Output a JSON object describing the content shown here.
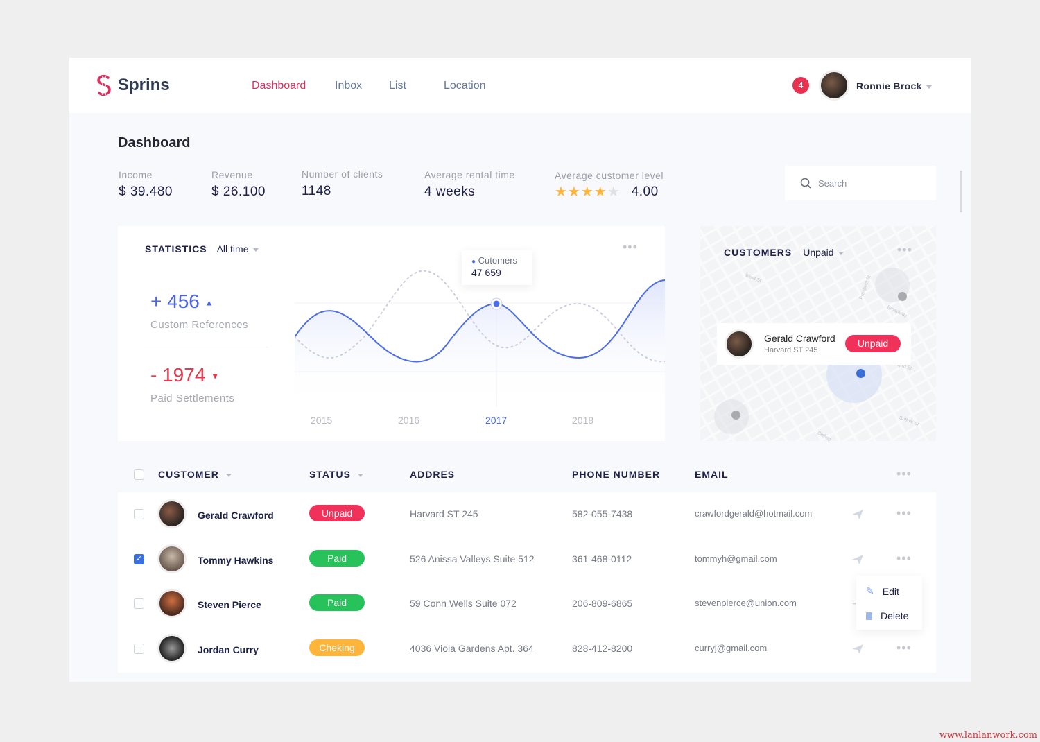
{
  "brand": {
    "name": "Sprins",
    "color": "#e52d5d"
  },
  "nav": [
    {
      "label": "Dashboard",
      "active": true
    },
    {
      "label": "Inbox"
    },
    {
      "label": "List"
    },
    {
      "label": "Location"
    }
  ],
  "user": {
    "notifications": "4",
    "name": "Ronnie Brock"
  },
  "page_title": "Dashboard",
  "kpis": [
    {
      "label": "Income",
      "value": "$ 39.480"
    },
    {
      "label": "Revenue",
      "value": "$ 26.100"
    },
    {
      "label": "Number of clients",
      "value": "1148"
    },
    {
      "label": "Average rental time",
      "value": "4 weeks"
    },
    {
      "label": "Average customer level",
      "value": "4.00",
      "stars": 4
    }
  ],
  "search": {
    "placeholder": "Search"
  },
  "statistics": {
    "title": "STATISTICS",
    "filter": "All time",
    "up_value": "+ 456",
    "up_label": "Custom References",
    "down_value": "- 1974",
    "down_label": "Paid Settlements",
    "tooltip_label": "Cutomers",
    "tooltip_value": "47 659",
    "years": [
      "2015",
      "2016",
      "2017",
      "2018"
    ],
    "active_year": "2017"
  },
  "customers_map": {
    "title": "CUSTOMERS",
    "filter": "Unpaid",
    "popup": {
      "name": "Gerald Crawford",
      "address": "Harvard ST 245",
      "status": "Unpaid"
    },
    "streets": [
      "West St",
      "Prospect St",
      "Broadway",
      "Harvard St",
      "Suffolk St",
      "Bishop"
    ]
  },
  "table": {
    "headers": [
      "CUSTOMER",
      "STATUS",
      "ADDRES",
      "PHONE NUMBER",
      "EMAIL"
    ],
    "rows": [
      {
        "name": "Gerald Crawford",
        "status": "Unpaid",
        "address": "Harvard ST 245",
        "phone": "582-055-7438",
        "email": "crawfordgerald@hotmail.com",
        "checked": false
      },
      {
        "name": "Tommy Hawkins",
        "status": "Paid",
        "address": "526 Anissa Valleys Suite 512",
        "phone": "361-468-0112",
        "email": "tommyh@gmail.com",
        "checked": true
      },
      {
        "name": "Steven Pierce",
        "status": "Paid",
        "address": "59 Conn Wells Suite 072",
        "phone": "206-809-6865",
        "email": "stevenpierce@union.com",
        "checked": false
      },
      {
        "name": "Jordan Curry",
        "status": "Cheking",
        "address": "4036 Viola Gardens Apt. 364",
        "phone": "828-412-8200",
        "email": "curryj@gmail.com",
        "checked": false
      }
    ]
  },
  "context_menu": {
    "edit": "Edit",
    "delete": "Delete"
  },
  "status_colors": {
    "Unpaid": "#f0325a",
    "Paid": "#27c35a",
    "Cheking": "#ffb43a"
  },
  "watermark": "www.lanlanwork.com"
}
